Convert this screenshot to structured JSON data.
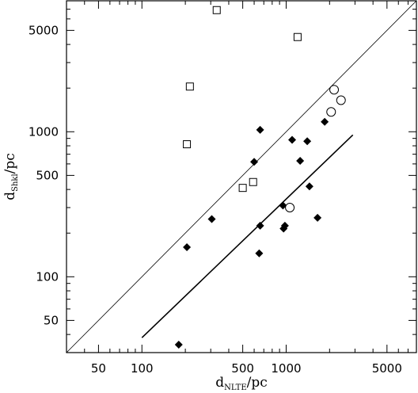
{
  "chart_data": {
    "type": "scatter",
    "xscale": "log",
    "yscale": "log",
    "xlim": [
      30,
      8000
    ],
    "ylim": [
      30,
      8000
    ],
    "xlabel": {
      "main": "d",
      "sub": "NLTE",
      "unit": "/pc"
    },
    "ylabel": {
      "main": "d",
      "sub": "Shkl",
      "unit": "/pc"
    },
    "x_ticks": [
      {
        "value": 50,
        "label": "50"
      },
      {
        "value": 100,
        "label": "100"
      },
      {
        "value": 500,
        "label": "500"
      },
      {
        "value": 1000,
        "label": "1000"
      },
      {
        "value": 5000,
        "label": "5000"
      }
    ],
    "y_ticks": [
      {
        "value": 50,
        "label": "50"
      },
      {
        "value": 100,
        "label": "100"
      },
      {
        "value": 500,
        "label": "500"
      },
      {
        "value": 1000,
        "label": "1000"
      },
      {
        "value": 5000,
        "label": "5000"
      }
    ],
    "series": [
      {
        "marker": "diamond-filled",
        "points": [
          [
            180,
            34
          ],
          [
            205,
            160
          ],
          [
            305,
            250
          ],
          [
            660,
            1030
          ],
          [
            600,
            620
          ],
          [
            660,
            225
          ],
          [
            650,
            145
          ],
          [
            950,
            310
          ],
          [
            980,
            225
          ],
          [
            960,
            215
          ],
          [
            1100,
            880
          ],
          [
            1250,
            630
          ],
          [
            1400,
            860
          ],
          [
            1450,
            420
          ],
          [
            1650,
            255
          ],
          [
            1850,
            1170
          ]
        ]
      },
      {
        "marker": "square-open",
        "points": [
          [
            330,
            6900
          ],
          [
            215,
            2050
          ],
          [
            205,
            820
          ],
          [
            500,
            410
          ],
          [
            590,
            450
          ],
          [
            1200,
            4500
          ]
        ]
      },
      {
        "marker": "circle-open",
        "points": [
          [
            1060,
            300
          ],
          [
            2050,
            1370
          ],
          [
            2150,
            1950
          ],
          [
            2400,
            1650
          ]
        ]
      }
    ],
    "lines": [
      {
        "style": "thin",
        "points": [
          [
            30,
            30
          ],
          [
            8000,
            8000
          ]
        ]
      },
      {
        "style": "thick",
        "points": [
          [
            100,
            38
          ],
          [
            2900,
            950
          ]
        ]
      }
    ]
  }
}
